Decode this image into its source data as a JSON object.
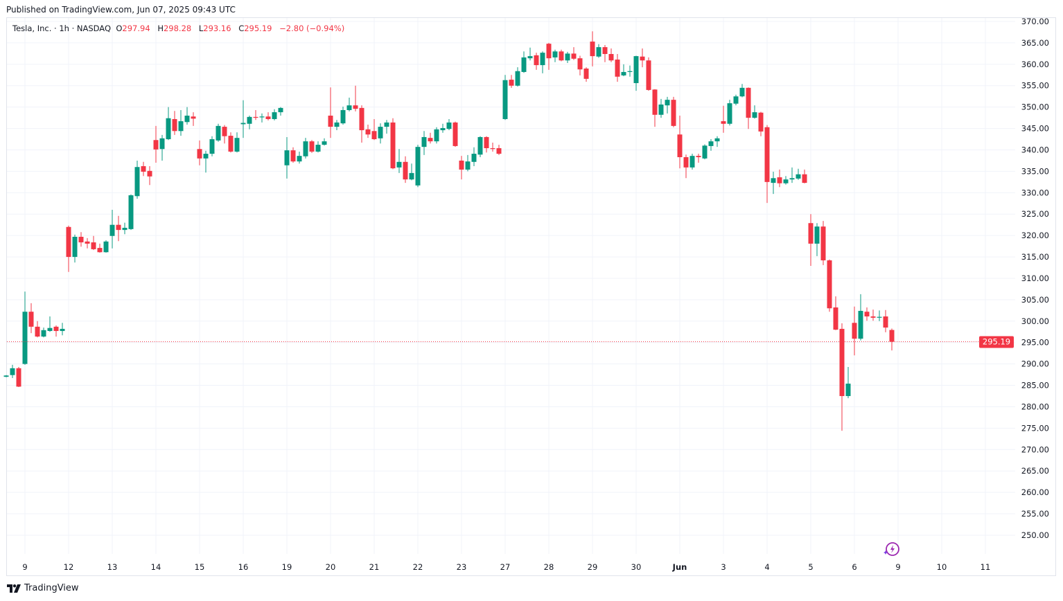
{
  "published": "Published on TradingView.com, Jun 07, 2025 09:43 UTC",
  "legend": {
    "symbol": "Tesla, Inc. · 1h · NASDAQ",
    "o_label": "O",
    "o": "297.94",
    "h_label": "H",
    "h": "298.28",
    "l_label": "L",
    "l": "293.16",
    "c_label": "C",
    "c": "295.19",
    "change": "−2.80 (−0.94%)"
  },
  "footer": {
    "brand": "TradingView"
  },
  "colors": {
    "up": "#089981",
    "down": "#f23645",
    "grid": "#f0f3fa",
    "last": "#f23645"
  },
  "chart_data": {
    "type": "candlestick",
    "title": "Tesla, Inc. · 1h · NASDAQ",
    "ylim": [
      247,
      370.5
    ],
    "yticks": [
      "250.00",
      "255.00",
      "260.00",
      "265.00",
      "270.00",
      "275.00",
      "280.00",
      "285.00",
      "290.00",
      "295.00",
      "300.00",
      "305.00",
      "310.00",
      "315.00",
      "320.00",
      "325.00",
      "330.00",
      "335.00",
      "340.00",
      "345.00",
      "350.00",
      "355.00",
      "360.00",
      "365.00",
      "370.00"
    ],
    "last_price": "295.19",
    "x_labels": [
      "9",
      "12",
      "13",
      "14",
      "15",
      "16",
      "19",
      "20",
      "21",
      "22",
      "23",
      "27",
      "28",
      "29",
      "30",
      "Jun",
      "3",
      "4",
      "5",
      "6",
      "9",
      "10",
      "11"
    ],
    "x_label_first_index": 3,
    "bars_per_day": 7,
    "ohlc": [
      [
        287.0,
        287.4,
        286.9,
        287.3
      ],
      [
        287.4,
        289.8,
        286.7,
        289.0
      ],
      [
        289.0,
        289.3,
        284.6,
        284.7
      ],
      [
        290.0,
        306.9,
        289.8,
        302.2
      ],
      [
        302.2,
        304.2,
        297.2,
        298.7
      ],
      [
        298.7,
        300.0,
        296.2,
        296.4
      ],
      [
        296.4,
        298.5,
        296.2,
        297.9
      ],
      [
        297.7,
        301.1,
        297.5,
        298.4
      ],
      [
        298.7,
        299.0,
        296.4,
        297.7
      ],
      [
        297.7,
        299.6,
        296.7,
        298.2
      ],
      [
        322.0,
        322.3,
        311.5,
        315.0
      ],
      [
        315.0,
        320.2,
        313.7,
        319.7
      ],
      [
        319.7,
        320.8,
        317.4,
        318.4
      ],
      [
        318.6,
        319.4,
        317.0,
        318.1
      ],
      [
        318.4,
        319.9,
        316.6,
        316.8
      ],
      [
        317.1,
        318.1,
        316.0,
        316.1
      ],
      [
        316.1,
        318.9,
        316.0,
        318.6
      ],
      [
        319.9,
        326.0,
        317.0,
        322.5
      ],
      [
        322.5,
        324.6,
        318.7,
        321.3
      ],
      [
        321.3,
        323.0,
        320.3,
        321.8
      ],
      [
        321.5,
        329.6,
        321.3,
        329.4
      ],
      [
        329.2,
        337.5,
        328.6,
        336.0
      ],
      [
        336.2,
        337.2,
        333.9,
        334.9
      ],
      [
        335.1,
        336.2,
        331.8,
        333.8
      ],
      [
        342.3,
        345.6,
        337.0,
        340.1
      ],
      [
        340.2,
        343.5,
        337.5,
        342.7
      ],
      [
        342.5,
        350.0,
        342.3,
        347.4
      ],
      [
        347.2,
        349.1,
        343.5,
        344.4
      ],
      [
        344.4,
        349.3,
        343.3,
        346.7
      ],
      [
        346.5,
        350.0,
        345.9,
        348.0
      ],
      [
        347.8,
        348.8,
        345.6,
        347.3
      ],
      [
        340.2,
        342.2,
        336.4,
        338.0
      ],
      [
        338.0,
        339.8,
        334.7,
        339.1
      ],
      [
        339.1,
        343.2,
        338.5,
        342.5
      ],
      [
        342.2,
        346.1,
        341.9,
        345.6
      ],
      [
        345.4,
        345.8,
        341.5,
        343.2
      ],
      [
        343.3,
        344.1,
        339.4,
        339.6
      ],
      [
        339.6,
        344.1,
        339.4,
        342.8
      ],
      [
        346.0,
        351.6,
        342.8,
        346.3
      ],
      [
        346.1,
        348.0,
        344.8,
        347.7
      ],
      [
        347.7,
        349.3,
        347.0,
        347.5
      ],
      [
        347.6,
        348.5,
        346.4,
        347.8
      ],
      [
        347.8,
        348.8,
        346.9,
        347.2
      ],
      [
        347.2,
        349.5,
        346.9,
        348.8
      ],
      [
        348.8,
        350.0,
        348.0,
        349.8
      ],
      [
        336.4,
        343.0,
        333.3,
        339.9
      ],
      [
        339.9,
        340.6,
        337.0,
        337.3
      ],
      [
        337.3,
        339.6,
        336.8,
        338.6
      ],
      [
        338.5,
        342.8,
        338.0,
        342.0
      ],
      [
        342.0,
        342.3,
        339.3,
        339.6
      ],
      [
        339.6,
        342.0,
        339.4,
        341.2
      ],
      [
        341.2,
        342.7,
        341.0,
        342.0
      ],
      [
        348.0,
        354.6,
        342.8,
        345.4
      ],
      [
        345.4,
        347.0,
        344.6,
        346.4
      ],
      [
        346.2,
        350.1,
        345.9,
        349.3
      ],
      [
        349.3,
        352.2,
        349.0,
        350.4
      ],
      [
        350.4,
        355.0,
        349.0,
        349.6
      ],
      [
        349.8,
        350.4,
        341.7,
        344.6
      ],
      [
        344.8,
        345.9,
        342.8,
        343.6
      ],
      [
        344.4,
        347.2,
        342.3,
        342.5
      ],
      [
        342.7,
        346.2,
        341.5,
        345.4
      ],
      [
        345.4,
        347.0,
        343.8,
        346.4
      ],
      [
        346.4,
        347.4,
        335.5,
        335.7
      ],
      [
        335.9,
        340.2,
        334.6,
        337.2
      ],
      [
        337.2,
        338.5,
        332.3,
        333.1
      ],
      [
        333.1,
        336.8,
        332.9,
        334.6
      ],
      [
        331.7,
        341.2,
        331.3,
        340.7
      ],
      [
        340.7,
        344.4,
        338.8,
        343.0
      ],
      [
        342.8,
        344.0,
        341.5,
        342.0
      ],
      [
        342.0,
        345.3,
        341.5,
        344.8
      ],
      [
        344.6,
        346.1,
        344.0,
        345.1
      ],
      [
        344.9,
        347.2,
        344.6,
        346.4
      ],
      [
        346.4,
        346.6,
        340.7,
        340.9
      ],
      [
        337.5,
        338.6,
        333.1,
        335.4
      ],
      [
        335.4,
        338.8,
        335.0,
        337.3
      ],
      [
        337.2,
        340.6,
        336.2,
        339.1
      ],
      [
        338.9,
        343.2,
        338.3,
        343.0
      ],
      [
        343.0,
        343.2,
        339.4,
        340.4
      ],
      [
        340.4,
        341.7,
        339.6,
        340.2
      ],
      [
        340.4,
        341.2,
        338.8,
        339.1
      ],
      [
        347.2,
        357.5,
        347.0,
        356.3
      ],
      [
        356.4,
        357.5,
        354.5,
        355.0
      ],
      [
        355.0,
        359.3,
        354.8,
        358.4
      ],
      [
        358.2,
        363.0,
        358.0,
        361.6
      ],
      [
        361.4,
        363.9,
        360.9,
        361.9
      ],
      [
        362.1,
        362.7,
        358.7,
        359.8
      ],
      [
        359.8,
        363.0,
        357.9,
        362.7
      ],
      [
        364.8,
        365.0,
        358.7,
        361.4
      ],
      [
        361.6,
        363.4,
        360.5,
        363.0
      ],
      [
        363.0,
        363.4,
        360.7,
        360.9
      ],
      [
        360.9,
        362.9,
        360.3,
        362.5
      ],
      [
        362.5,
        364.0,
        361.0,
        361.3
      ],
      [
        361.4,
        362.0,
        357.4,
        358.8
      ],
      [
        359.0,
        359.3,
        355.9,
        356.6
      ],
      [
        365.3,
        367.7,
        359.5,
        361.9
      ],
      [
        361.8,
        364.7,
        361.5,
        364.0
      ],
      [
        364.0,
        364.5,
        360.5,
        362.4
      ],
      [
        362.4,
        363.7,
        360.5,
        360.9
      ],
      [
        361.1,
        362.4,
        355.9,
        357.1
      ],
      [
        357.4,
        360.0,
        357.2,
        358.2
      ],
      [
        358.2,
        359.7,
        357.1,
        358.4
      ],
      [
        355.6,
        362.0,
        353.8,
        361.9
      ],
      [
        361.8,
        363.7,
        359.3,
        360.9
      ],
      [
        360.9,
        361.6,
        353.8,
        354.0
      ],
      [
        354.1,
        354.2,
        345.4,
        348.2
      ],
      [
        348.2,
        351.9,
        347.5,
        350.6
      ],
      [
        350.4,
        352.4,
        348.5,
        351.7
      ],
      [
        351.7,
        352.4,
        345.3,
        345.6
      ],
      [
        343.6,
        348.0,
        335.7,
        338.3
      ],
      [
        338.3,
        338.9,
        333.4,
        335.9
      ],
      [
        335.9,
        339.1,
        335.4,
        338.6
      ],
      [
        338.6,
        339.1,
        337.0,
        338.3
      ],
      [
        338.0,
        341.3,
        337.8,
        341.0
      ],
      [
        340.9,
        342.5,
        339.8,
        342.0
      ],
      [
        342.0,
        343.2,
        340.7,
        342.7
      ],
      [
        346.7,
        350.3,
        344.0,
        346.1
      ],
      [
        346.1,
        351.7,
        345.7,
        350.9
      ],
      [
        350.8,
        352.9,
        350.4,
        352.5
      ],
      [
        352.5,
        355.4,
        352.3,
        354.5
      ],
      [
        354.5,
        354.6,
        344.9,
        347.5
      ],
      [
        347.5,
        350.4,
        347.3,
        348.8
      ],
      [
        348.7,
        348.9,
        343.2,
        344.3
      ],
      [
        345.3,
        345.8,
        327.6,
        332.5
      ],
      [
        332.3,
        334.9,
        329.7,
        333.4
      ],
      [
        333.6,
        335.4,
        331.3,
        332.2
      ],
      [
        332.2,
        333.9,
        331.9,
        333.1
      ],
      [
        333.1,
        335.9,
        332.3,
        333.4
      ],
      [
        333.3,
        335.6,
        333.0,
        334.3
      ],
      [
        334.3,
        335.4,
        332.2,
        332.3
      ],
      [
        322.9,
        325.0,
        312.9,
        318.1
      ],
      [
        318.1,
        322.9,
        315.2,
        322.1
      ],
      [
        322.1,
        323.4,
        313.1,
        314.2
      ],
      [
        314.2,
        314.4,
        302.2,
        303.0
      ],
      [
        303.2,
        305.8,
        297.9,
        298.0
      ],
      [
        298.2,
        299.5,
        274.4,
        282.5
      ],
      [
        282.5,
        289.3,
        282.0,
        285.4
      ],
      [
        299.6,
        303.4,
        292.0,
        295.9
      ],
      [
        295.9,
        306.3,
        295.5,
        302.4
      ],
      [
        302.2,
        303.2,
        300.1,
        301.1
      ],
      [
        301.1,
        302.7,
        300.1,
        300.8
      ],
      [
        300.8,
        302.5,
        300.0,
        301.0
      ],
      [
        301.1,
        302.6,
        297.4,
        298.5
      ],
      [
        297.94,
        298.28,
        293.16,
        295.19
      ]
    ]
  }
}
